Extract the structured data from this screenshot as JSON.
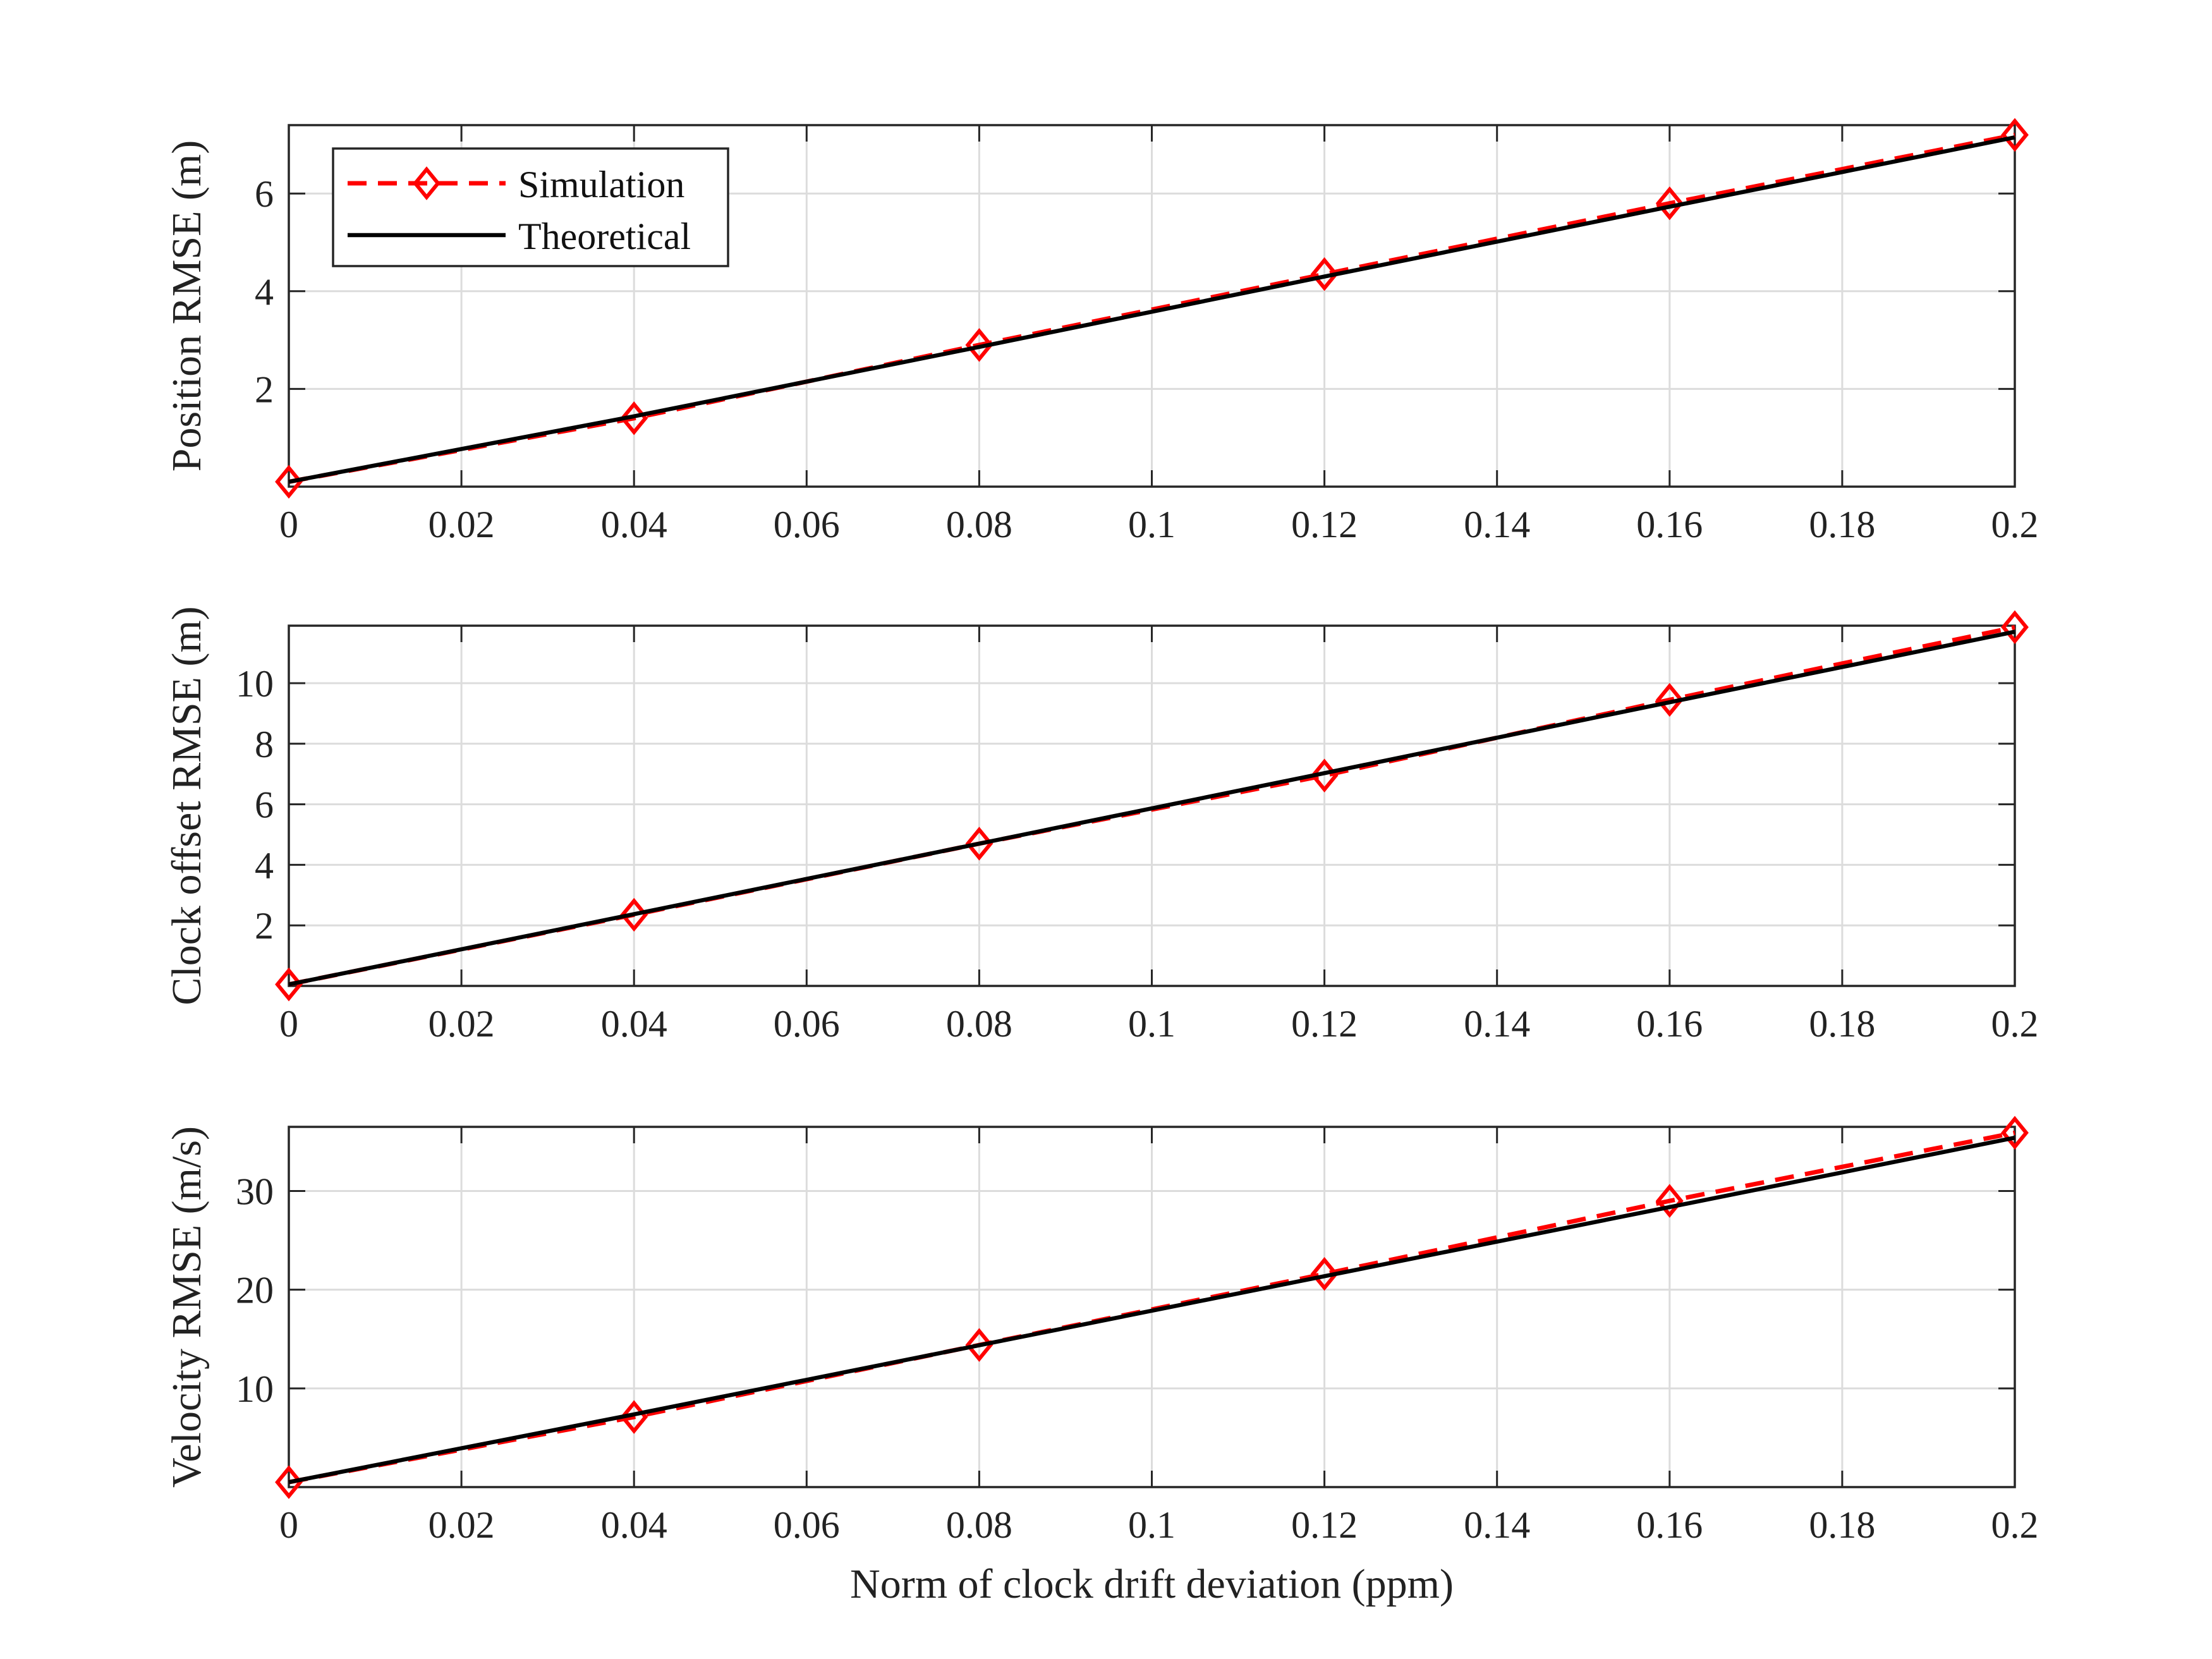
{
  "chart_data": [
    {
      "type": "line",
      "ylabel": "Position RMSE (m)",
      "xlabel": "",
      "xlim": [
        0,
        0.2
      ],
      "ylim": [
        0,
        7.4
      ],
      "xticks": [
        "0",
        "0.02",
        "0.04",
        "0.06",
        "0.08",
        "0.1",
        "0.12",
        "0.14",
        "0.16",
        "0.18",
        "0.2"
      ],
      "yticks": [
        "2",
        "4",
        "6"
      ],
      "ytick_values": [
        2,
        4,
        6
      ],
      "grid": true,
      "legend": "top-left",
      "x": [
        0,
        0.04,
        0.08,
        0.12,
        0.16,
        0.2
      ],
      "series": [
        {
          "name": "Simulation",
          "values": [
            0.1,
            1.4,
            2.9,
            4.35,
            5.8,
            7.2
          ],
          "color": "#ff0000",
          "style": "dashed",
          "marker": "diamond"
        },
        {
          "name": "Theoretical",
          "values": [
            0.1,
            1.44,
            2.86,
            4.3,
            5.73,
            7.15
          ],
          "color": "#000000",
          "style": "solid",
          "marker": "none"
        }
      ]
    },
    {
      "type": "line",
      "ylabel": "Clock offset RMSE (m)",
      "xlabel": "",
      "xlim": [
        0,
        0.2
      ],
      "ylim": [
        0,
        11.9
      ],
      "xticks": [
        "0",
        "0.02",
        "0.04",
        "0.06",
        "0.08",
        "0.1",
        "0.12",
        "0.14",
        "0.16",
        "0.18",
        "0.2"
      ],
      "yticks": [
        "2",
        "4",
        "6",
        "8",
        "10"
      ],
      "ytick_values": [
        2,
        4,
        6,
        8,
        10
      ],
      "grid": true,
      "x": [
        0,
        0.04,
        0.08,
        0.12,
        0.16,
        0.2
      ],
      "series": [
        {
          "name": "Simulation",
          "values": [
            0.05,
            2.35,
            4.7,
            6.95,
            9.45,
            11.85
          ],
          "color": "#ff0000",
          "style": "dashed",
          "marker": "diamond"
        },
        {
          "name": "Theoretical",
          "values": [
            0.05,
            2.37,
            4.7,
            7.03,
            9.37,
            11.7
          ],
          "color": "#000000",
          "style": "solid",
          "marker": "none"
        }
      ]
    },
    {
      "type": "line",
      "ylabel": "Velocity RMSE (m/s)",
      "xlabel": "Norm of clock drift deviation (ppm)",
      "xlim": [
        0,
        0.2
      ],
      "ylim": [
        0,
        36.5
      ],
      "xticks": [
        "0",
        "0.02",
        "0.04",
        "0.06",
        "0.08",
        "0.1",
        "0.12",
        "0.14",
        "0.16",
        "0.18",
        "0.2"
      ],
      "yticks": [
        "10",
        "20",
        "30"
      ],
      "ytick_values": [
        10,
        20,
        30
      ],
      "grid": true,
      "x": [
        0,
        0.04,
        0.08,
        0.12,
        0.16,
        0.2
      ],
      "series": [
        {
          "name": "Simulation",
          "values": [
            0.5,
            7.1,
            14.4,
            21.6,
            29.0,
            35.9
          ],
          "color": "#ff0000",
          "style": "dashed",
          "marker": "diamond"
        },
        {
          "name": "Theoretical",
          "values": [
            0.5,
            7.37,
            14.37,
            21.37,
            28.37,
            35.4
          ],
          "color": "#000000",
          "style": "solid",
          "marker": "none"
        }
      ]
    }
  ],
  "legend": {
    "simulation_label": "Simulation",
    "theoretical_label": "Theoretical"
  }
}
